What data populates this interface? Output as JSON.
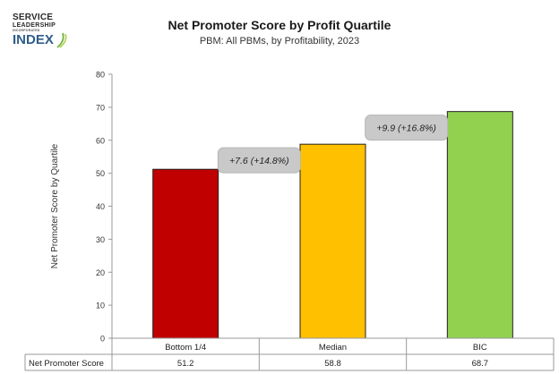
{
  "logo": {
    "line1": "SERVICE",
    "line2": "LEADERSHIP",
    "line3": "INCORPORATED",
    "line4": "INDEX"
  },
  "chart_data": {
    "type": "bar",
    "title": "Net Promoter Score by Profit Quartile",
    "subtitle": "PBM: All PBMs, by Profitability, 2023",
    "ylabel": "Net Promoter Score by Quartile",
    "ylim": [
      0,
      80
    ],
    "yticks": [
      0,
      10,
      20,
      30,
      40,
      50,
      60,
      70,
      80
    ],
    "categories": [
      "Bottom 1/4",
      "Median",
      "BIC"
    ],
    "series": [
      {
        "name": "Net Promoter Score",
        "values": [
          51.2,
          58.8,
          68.7
        ],
        "value_labels": [
          "51.2",
          "58.8",
          "68.7"
        ],
        "colors": [
          "#c00000",
          "#ffc000",
          "#92d050"
        ]
      }
    ],
    "annotations": [
      {
        "text": "+7.6 (+14.8%)",
        "between": [
          "Bottom 1/4",
          "Median"
        ]
      },
      {
        "text": "+9.9 (+16.8%)",
        "between": [
          "Median",
          "BIC"
        ]
      }
    ],
    "data_table": true,
    "grid": false
  }
}
